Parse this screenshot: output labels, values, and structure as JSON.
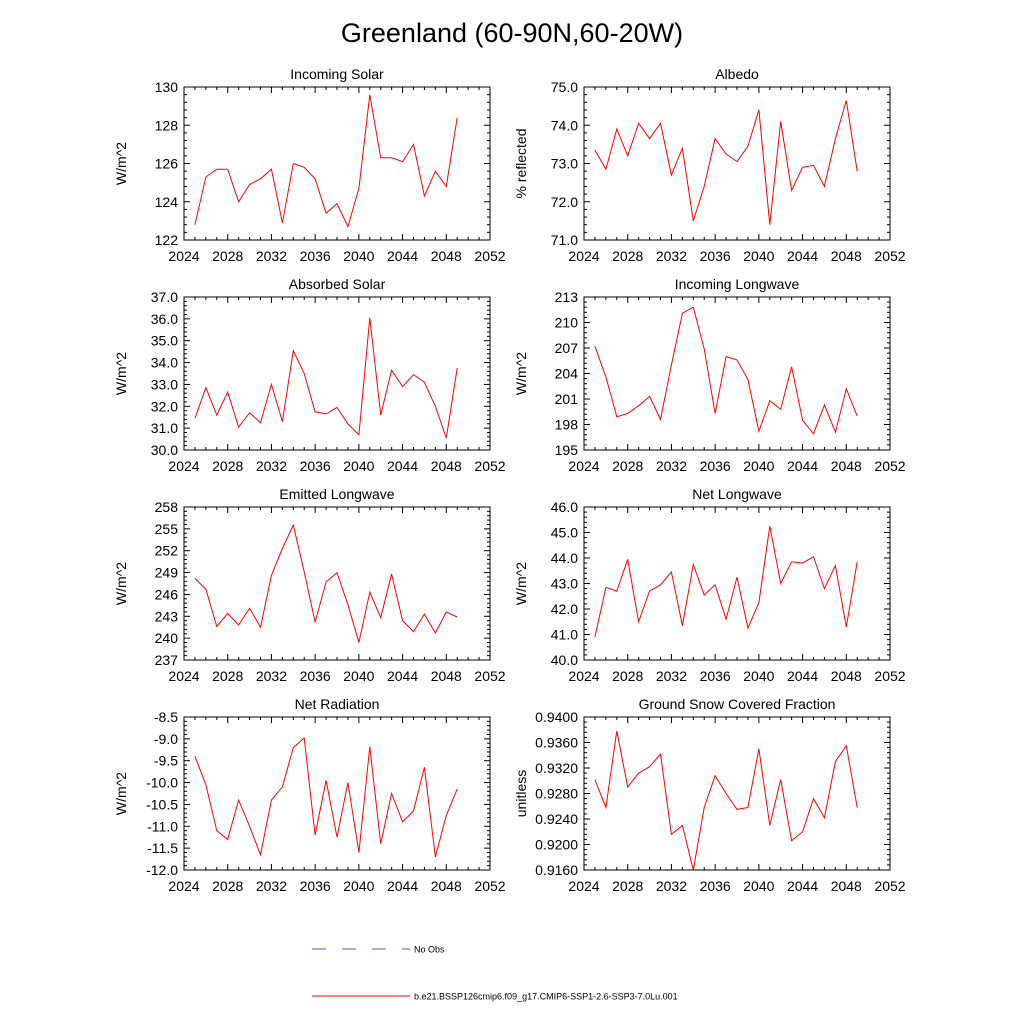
{
  "figure": {
    "title": "Greenland (60-90N,60-20W)",
    "legend": [
      {
        "label": "No Obs",
        "color": "#5a5ad6",
        "dash": true
      },
      {
        "label": "b.e21.BSSP126cmip6.f09_g17.CMIP6-SSP1-2.6-SSP3-7.0Lu.001",
        "color": "#ff0000",
        "dash": false
      }
    ]
  },
  "chart_data": [
    {
      "type": "line",
      "title": "Incoming Solar",
      "ylabel": "W/m^2",
      "xlim": [
        2024,
        2052
      ],
      "ylim": [
        122,
        130
      ],
      "xticks": [
        2024,
        2028,
        2032,
        2036,
        2040,
        2044,
        2048,
        2052
      ],
      "yticks": [
        "122",
        "124",
        "126",
        "128",
        "130"
      ],
      "x": [
        2025,
        2026,
        2027,
        2028,
        2029,
        2030,
        2031,
        2032,
        2033,
        2034,
        2035,
        2036,
        2037,
        2038,
        2039,
        2040,
        2041,
        2042,
        2043,
        2044,
        2045,
        2046,
        2047,
        2048,
        2049
      ],
      "series": [
        {
          "color": "#ff0000",
          "values": [
            122.8,
            125.3,
            125.7,
            125.7,
            124.0,
            124.9,
            125.2,
            125.7,
            122.9,
            126.0,
            125.8,
            125.2,
            123.4,
            123.9,
            122.7,
            124.7,
            129.6,
            126.3,
            126.3,
            126.1,
            127.0,
            124.3,
            125.6,
            124.8,
            128.4
          ]
        }
      ]
    },
    {
      "type": "line",
      "title": "Albedo",
      "ylabel": "% reflected",
      "xlim": [
        2024,
        2052
      ],
      "ylim": [
        71.0,
        75.0
      ],
      "xticks": [
        2024,
        2028,
        2032,
        2036,
        2040,
        2044,
        2048,
        2052
      ],
      "yticks": [
        "71.0",
        "72.0",
        "73.0",
        "74.0",
        "75.0"
      ],
      "x": [
        2025,
        2026,
        2027,
        2028,
        2029,
        2030,
        2031,
        2032,
        2033,
        2034,
        2035,
        2036,
        2037,
        2038,
        2039,
        2040,
        2041,
        2042,
        2043,
        2044,
        2045,
        2046,
        2047,
        2048,
        2049
      ],
      "series": [
        {
          "color": "#ff0000",
          "values": [
            73.35,
            72.85,
            73.9,
            73.2,
            74.05,
            73.65,
            74.05,
            72.7,
            73.4,
            71.5,
            72.4,
            73.65,
            73.25,
            73.05,
            73.45,
            74.4,
            71.4,
            74.1,
            72.3,
            72.9,
            72.95,
            72.4,
            73.65,
            74.65,
            72.8
          ]
        }
      ]
    },
    {
      "type": "line",
      "title": "Absorbed Solar",
      "ylabel": "W/m^2",
      "xlim": [
        2024,
        2052
      ],
      "ylim": [
        30.0,
        37.0
      ],
      "xticks": [
        2024,
        2028,
        2032,
        2036,
        2040,
        2044,
        2048,
        2052
      ],
      "yticks": [
        "30.0",
        "31.0",
        "32.0",
        "33.0",
        "34.0",
        "35.0",
        "36.0",
        "37.0"
      ],
      "x": [
        2025,
        2026,
        2027,
        2028,
        2029,
        2030,
        2031,
        2032,
        2033,
        2034,
        2035,
        2036,
        2037,
        2038,
        2039,
        2040,
        2041,
        2042,
        2043,
        2044,
        2045,
        2046,
        2047,
        2048,
        2049
      ],
      "series": [
        {
          "color": "#ff0000",
          "values": [
            31.45,
            32.85,
            31.6,
            32.65,
            31.05,
            31.7,
            31.25,
            33.0,
            31.3,
            34.55,
            33.5,
            31.75,
            31.65,
            31.95,
            31.2,
            30.7,
            36.05,
            31.6,
            33.65,
            32.9,
            33.45,
            33.1,
            32.0,
            30.55,
            33.75
          ]
        }
      ]
    },
    {
      "type": "line",
      "title": "Incoming Longwave",
      "ylabel": "W/m^2",
      "xlim": [
        2024,
        2052
      ],
      "ylim": [
        195,
        213
      ],
      "xticks": [
        2024,
        2028,
        2032,
        2036,
        2040,
        2044,
        2048,
        2052
      ],
      "yticks": [
        "195",
        "198",
        "201",
        "204",
        "207",
        "210",
        "213"
      ],
      "x": [
        2025,
        2026,
        2027,
        2028,
        2029,
        2030,
        2031,
        2032,
        2033,
        2034,
        2035,
        2036,
        2037,
        2038,
        2039,
        2040,
        2041,
        2042,
        2043,
        2044,
        2045,
        2046,
        2047,
        2048,
        2049
      ],
      "series": [
        {
          "color": "#ff0000",
          "values": [
            207.2,
            203.6,
            198.9,
            199.3,
            200.2,
            201.3,
            198.6,
            205.0,
            211.1,
            211.8,
            206.9,
            199.3,
            206.0,
            205.6,
            203.3,
            197.2,
            200.8,
            199.8,
            204.8,
            198.5,
            196.9,
            200.3,
            197.1,
            202.2,
            199.0
          ]
        }
      ]
    },
    {
      "type": "line",
      "title": "Emitted Longwave",
      "ylabel": "W/m^2",
      "xlim": [
        2024,
        2052
      ],
      "ylim": [
        237,
        258
      ],
      "xticks": [
        2024,
        2028,
        2032,
        2036,
        2040,
        2044,
        2048,
        2052
      ],
      "yticks": [
        "237",
        "240",
        "243",
        "246",
        "249",
        "252",
        "255",
        "258"
      ],
      "x": [
        2025,
        2026,
        2027,
        2028,
        2029,
        2030,
        2031,
        2032,
        2033,
        2034,
        2035,
        2036,
        2037,
        2038,
        2039,
        2040,
        2041,
        2042,
        2043,
        2044,
        2045,
        2046,
        2047,
        2048,
        2049
      ],
      "series": [
        {
          "color": "#ff0000",
          "values": [
            248.2,
            246.7,
            241.6,
            243.4,
            241.8,
            244.1,
            241.5,
            248.6,
            252.3,
            255.5,
            249.1,
            242.2,
            247.7,
            249.0,
            244.6,
            239.4,
            246.3,
            242.8,
            248.8,
            242.4,
            240.9,
            243.3,
            240.7,
            243.6,
            242.9
          ]
        }
      ]
    },
    {
      "type": "line",
      "title": "Net Longwave",
      "ylabel": "W/m^2",
      "xlim": [
        2024,
        2052
      ],
      "ylim": [
        40.0,
        46.0
      ],
      "xticks": [
        2024,
        2028,
        2032,
        2036,
        2040,
        2044,
        2048,
        2052
      ],
      "yticks": [
        "40.0",
        "41.0",
        "42.0",
        "43.0",
        "44.0",
        "45.0",
        "46.0"
      ],
      "x": [
        2025,
        2026,
        2027,
        2028,
        2029,
        2030,
        2031,
        2032,
        2033,
        2034,
        2035,
        2036,
        2037,
        2038,
        2039,
        2040,
        2041,
        2042,
        2043,
        2044,
        2045,
        2046,
        2047,
        2048,
        2049
      ],
      "series": [
        {
          "color": "#ff0000",
          "values": [
            40.9,
            42.85,
            42.7,
            43.95,
            41.5,
            42.7,
            42.95,
            43.45,
            41.35,
            43.75,
            42.55,
            42.95,
            41.6,
            43.25,
            41.25,
            42.25,
            45.25,
            43.0,
            43.85,
            43.8,
            44.05,
            42.8,
            43.7,
            41.3,
            43.85
          ]
        }
      ]
    },
    {
      "type": "line",
      "title": "Net Radiation",
      "ylabel": "W/m^2",
      "xlim": [
        2024,
        2052
      ],
      "ylim": [
        -12.0,
        -8.5
      ],
      "xticks": [
        2024,
        2028,
        2032,
        2036,
        2040,
        2044,
        2048,
        2052
      ],
      "yticks": [
        "-12.0",
        "-11.5",
        "-11.0",
        "-10.5",
        "-10.0",
        "-9.5",
        "-9.0",
        "-8.5"
      ],
      "x": [
        2025,
        2026,
        2027,
        2028,
        2029,
        2030,
        2031,
        2032,
        2033,
        2034,
        2035,
        2036,
        2037,
        2038,
        2039,
        2040,
        2041,
        2042,
        2043,
        2044,
        2045,
        2046,
        2047,
        2048,
        2049
      ],
      "series": [
        {
          "color": "#ff0000",
          "values": [
            -9.4,
            -10.05,
            -11.1,
            -11.3,
            -10.4,
            -11.0,
            -11.65,
            -10.4,
            -10.1,
            -9.2,
            -8.98,
            -11.2,
            -9.95,
            -11.25,
            -10.0,
            -11.6,
            -9.18,
            -11.4,
            -10.25,
            -10.9,
            -10.65,
            -9.65,
            -11.7,
            -10.75,
            -10.15
          ]
        }
      ]
    },
    {
      "type": "line",
      "title": "Ground Snow Covered Fraction",
      "ylabel": "unitless",
      "xlim": [
        2024,
        2052
      ],
      "ylim": [
        0.916,
        0.94
      ],
      "xticks": [
        2024,
        2028,
        2032,
        2036,
        2040,
        2044,
        2048,
        2052
      ],
      "yticks": [
        "0.9160",
        "0.9200",
        "0.9240",
        "0.9280",
        "0.9320",
        "0.9360",
        "0.9400"
      ],
      "x": [
        2025,
        2026,
        2027,
        2028,
        2029,
        2030,
        2031,
        2032,
        2033,
        2034,
        2035,
        2036,
        2037,
        2038,
        2039,
        2040,
        2041,
        2042,
        2043,
        2044,
        2045,
        2046,
        2047,
        2048,
        2049
      ],
      "series": [
        {
          "color": "#ff0000",
          "values": [
            0.9302,
            0.9258,
            0.9378,
            0.929,
            0.9312,
            0.9322,
            0.9342,
            0.9216,
            0.923,
            0.916,
            0.9258,
            0.9308,
            0.928,
            0.9255,
            0.9258,
            0.935,
            0.923,
            0.9302,
            0.9206,
            0.922,
            0.9272,
            0.9242,
            0.933,
            0.9355,
            0.9258
          ]
        }
      ]
    }
  ]
}
